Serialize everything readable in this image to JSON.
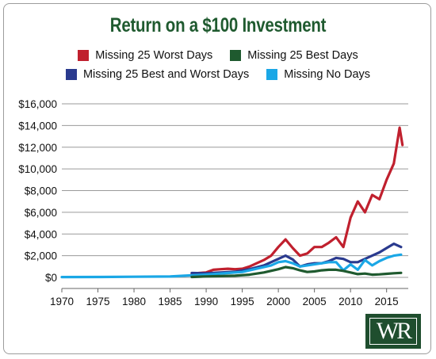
{
  "chart_data": {
    "type": "line",
    "title": "Return on a $100 Investment",
    "xlim": [
      1970,
      2018
    ],
    "ylim": [
      0,
      16000
    ],
    "x_ticks": [
      1970,
      1975,
      1980,
      1985,
      1990,
      1995,
      2000,
      2005,
      2010,
      2015
    ],
    "y_ticks": [
      0,
      2000,
      4000,
      6000,
      8000,
      10000,
      12000,
      14000,
      16000
    ],
    "y_tick_labels": [
      "$0",
      "$2,000",
      "$4,000",
      "$6,000",
      "$8,000",
      "$10,000",
      "$12,000",
      "$14,000",
      "$16,000"
    ],
    "legend": {
      "position": "top",
      "rows": [
        [
          "Missing 25 Worst Days",
          "Missing 25 Best Days"
        ],
        [
          "Missing 25 Best and Worst Days",
          "Missing No Days"
        ]
      ]
    },
    "series": [
      {
        "name": "Missing 25 Worst Days",
        "color": "#c0202e",
        "x": [
          1988,
          1989,
          1990,
          1991,
          1992,
          1993,
          1994,
          1995,
          1996,
          1997,
          1998,
          1999,
          2000,
          2001,
          2002,
          2003,
          2004,
          2005,
          2006,
          2007,
          2008,
          2009,
          2010,
          2011,
          2012,
          2013,
          2014,
          2015,
          2016,
          2016.8,
          2017.2
        ],
        "values": [
          300,
          400,
          450,
          700,
          750,
          800,
          750,
          800,
          1000,
          1300,
          1600,
          2000,
          2800,
          3500,
          2700,
          2000,
          2200,
          2800,
          2800,
          3200,
          3700,
          2800,
          5500,
          7000,
          6000,
          7600,
          7200,
          9000,
          10500,
          13800,
          12200
        ]
      },
      {
        "name": "Missing 25 Best Days",
        "color": "#1f5a2f",
        "x": [
          1988,
          1990,
          1992,
          1994,
          1996,
          1998,
          2000,
          2001,
          2002,
          2003,
          2004,
          2005,
          2006,
          2007,
          2008,
          2009,
          2010,
          2011,
          2012,
          2013,
          2014,
          2015,
          2016,
          2017
        ],
        "values": [
          40,
          90,
          120,
          150,
          250,
          450,
          750,
          950,
          850,
          650,
          500,
          550,
          650,
          700,
          700,
          600,
          450,
          300,
          350,
          250,
          280,
          330,
          380,
          420
        ]
      },
      {
        "name": "Missing 25 Best and Worst Days",
        "color": "#2a3a8e",
        "x": [
          1988,
          1990,
          1992,
          1994,
          1996,
          1998,
          2000,
          2001,
          2002,
          2003,
          2004,
          2005,
          2006,
          2007,
          2008,
          2009,
          2010,
          2011,
          2012,
          2013,
          2014,
          2015,
          2016,
          2017
        ],
        "values": [
          400,
          380,
          450,
          520,
          750,
          1100,
          1700,
          2000,
          1650,
          1000,
          1200,
          1300,
          1300,
          1500,
          1800,
          1700,
          1400,
          1400,
          1700,
          2000,
          2300,
          2700,
          3100,
          2800
        ]
      },
      {
        "name": "Missing No Days",
        "color": "#1aa7e6",
        "x": [
          1970,
          1975,
          1980,
          1985,
          1987,
          1989,
          1991,
          1993,
          1995,
          1997,
          1999,
          2000,
          2001,
          2002,
          2003,
          2004,
          2005,
          2006,
          2007,
          2008,
          2009,
          2010,
          2011,
          2012,
          2013,
          2014,
          2015,
          2016,
          2017
        ],
        "values": [
          30,
          40,
          55,
          80,
          150,
          220,
          300,
          400,
          500,
          800,
          1100,
          1400,
          1500,
          1300,
          1000,
          1100,
          1200,
          1300,
          1400,
          1400,
          650,
          1200,
          700,
          1600,
          1100,
          1500,
          1800,
          2000,
          2100
        ]
      }
    ]
  }
}
